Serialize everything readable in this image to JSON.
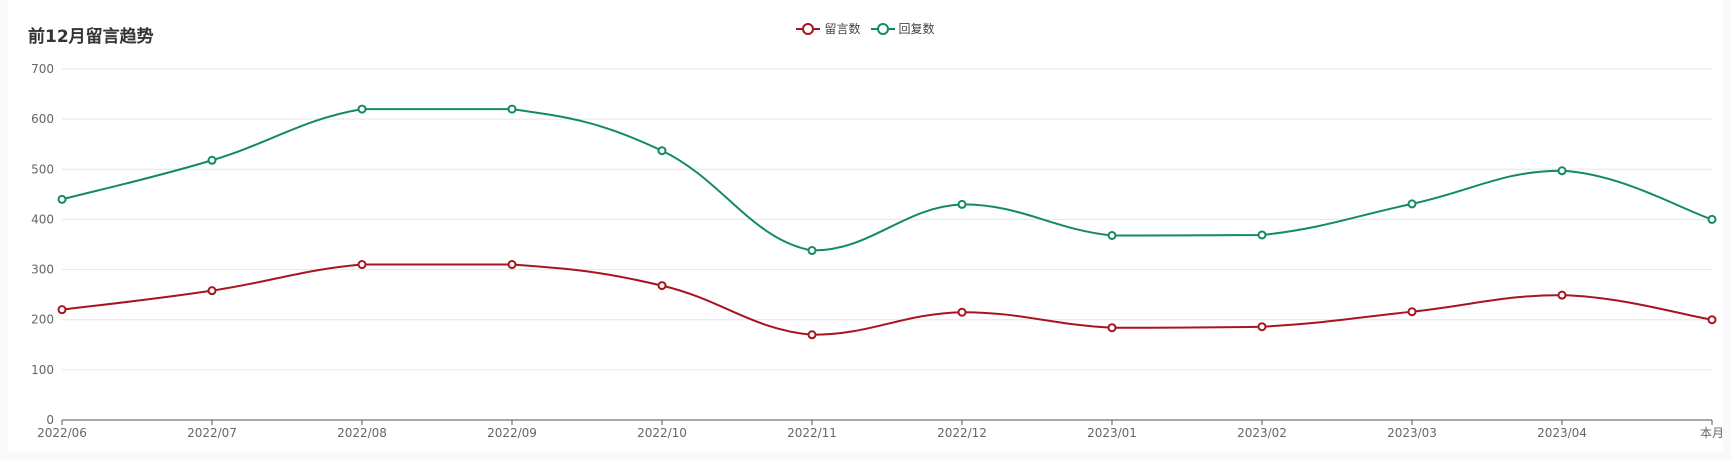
{
  "chart_data": {
    "type": "line",
    "title": "前12月留言趋势",
    "categories": [
      "2022/06",
      "2022/07",
      "2022/08",
      "2022/09",
      "2022/10",
      "2022/11",
      "2022/12",
      "2023/01",
      "2023/02",
      "2023/03",
      "2023/04",
      "本月"
    ],
    "series": [
      {
        "name": "留言数",
        "color": "#a8141f",
        "values": [
          220,
          258,
          310,
          310,
          268,
          170,
          215,
          184,
          186,
          216,
          249,
          200
        ]
      },
      {
        "name": "回复数",
        "color": "#13896a",
        "values": [
          440,
          518,
          620,
          620,
          537,
          338,
          430,
          368,
          369,
          431,
          497,
          400
        ]
      }
    ],
    "ylim": [
      0,
      700
    ],
    "yticks": [
      0,
      100,
      200,
      300,
      400,
      500,
      600,
      700
    ],
    "grid": true,
    "legend": "top-center",
    "smooth": true
  }
}
